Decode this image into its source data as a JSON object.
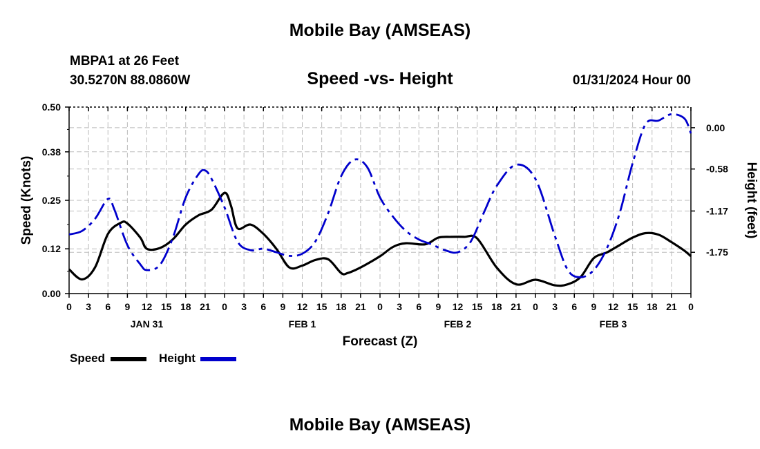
{
  "header": {
    "title": "Mobile Bay (AMSEAS)",
    "station": "MBPA1 at 26 Feet",
    "coords": "30.5270N  88.0860W",
    "subtitle": "Speed -vs- Height",
    "run_time": "01/31/2024 Hour 00"
  },
  "footer": {
    "title": "Mobile Bay (AMSEAS)"
  },
  "legend": {
    "speed_label": "Speed",
    "height_label": "Height"
  },
  "colors": {
    "speed": "#000000",
    "height": "#0000cc",
    "grid": "#bbbbbb"
  },
  "chart_data": {
    "type": "line",
    "title": "Speed -vs- Height",
    "xlabel": "Forecast (Z)",
    "ylabel_left": "Speed (Knots)",
    "ylabel_right": "Height (feet)",
    "x_unit": "hours from 01/31/2024 00Z",
    "xlim": [
      0,
      96
    ],
    "ylim_left": [
      0,
      0.5
    ],
    "ylim_right": [
      -2.33,
      0.29
    ],
    "x_ticks": [
      0,
      3,
      6,
      9,
      12,
      15,
      18,
      21,
      24,
      27,
      30,
      33,
      36,
      39,
      42,
      45,
      48,
      51,
      54,
      57,
      60,
      63,
      66,
      69,
      72,
      75,
      78,
      81,
      84,
      87,
      90,
      93,
      96
    ],
    "x_tick_labels": [
      "0",
      "3",
      "6",
      "9",
      "12",
      "15",
      "18",
      "21",
      "0",
      "3",
      "6",
      "9",
      "12",
      "15",
      "18",
      "21",
      "0",
      "3",
      "6",
      "9",
      "12",
      "15",
      "18",
      "21",
      "0",
      "3",
      "6",
      "9",
      "12",
      "15",
      "18",
      "21",
      "0"
    ],
    "day_labels": [
      {
        "x": 12,
        "label": "JAN 31"
      },
      {
        "x": 36,
        "label": "FEB 1"
      },
      {
        "x": 60,
        "label": "FEB 2"
      },
      {
        "x": 84,
        "label": "FEB 3"
      }
    ],
    "left_ticks": [
      0.0,
      0.12,
      0.25,
      0.38,
      0.5
    ],
    "left_tick_labels": [
      "0.00",
      "0.12",
      "0.25",
      "0.38",
      "0.50"
    ],
    "right_ticks": [
      0.0,
      -0.58,
      -1.17,
      -1.75
    ],
    "right_tick_labels": [
      "0.00",
      "-0.58",
      "-1.17",
      "-1.75"
    ],
    "grid": true,
    "series": [
      {
        "name": "Speed",
        "axis": "left",
        "style": "solid",
        "x": [
          0,
          2,
          4,
          6,
          8,
          9,
          11,
          12,
          14,
          16,
          18,
          20,
          22,
          24,
          25,
          26,
          28,
          30,
          32,
          34,
          36,
          38,
          40,
          42,
          43,
          45,
          48,
          50,
          52,
          55,
          57,
          59,
          61,
          63,
          66,
          69,
          72,
          75,
          77,
          79,
          81,
          83,
          85,
          87,
          89,
          91,
          93,
          95,
          96
        ],
        "values": [
          0.065,
          0.038,
          0.07,
          0.16,
          0.19,
          0.188,
          0.15,
          0.12,
          0.122,
          0.145,
          0.185,
          0.21,
          0.225,
          0.27,
          0.235,
          0.175,
          0.185,
          0.16,
          0.12,
          0.07,
          0.075,
          0.09,
          0.092,
          0.055,
          0.055,
          0.07,
          0.1,
          0.125,
          0.135,
          0.132,
          0.15,
          0.152,
          0.152,
          0.148,
          0.07,
          0.025,
          0.037,
          0.022,
          0.025,
          0.045,
          0.095,
          0.11,
          0.13,
          0.15,
          0.162,
          0.158,
          0.138,
          0.115,
          0.1
        ]
      },
      {
        "name": "Height",
        "axis": "right",
        "style": "dashed",
        "x": [
          0,
          2,
          4,
          6,
          7,
          9,
          11,
          12,
          14,
          16,
          18,
          20,
          21,
          22,
          24,
          26,
          28,
          30,
          32,
          34,
          36,
          38,
          40,
          42,
          44,
          46,
          48,
          50,
          52,
          54,
          56,
          58,
          60,
          62,
          64,
          66,
          69,
          72,
          75,
          77,
          79,
          81,
          83,
          85,
          87,
          89,
          91,
          93,
          95,
          96
        ],
        "values": [
          -1.5,
          -1.45,
          -1.28,
          -1.0,
          -1.15,
          -1.65,
          -1.92,
          -2.0,
          -1.93,
          -1.55,
          -0.98,
          -0.65,
          -0.6,
          -0.72,
          -1.12,
          -1.6,
          -1.72,
          -1.7,
          -1.75,
          -1.8,
          -1.77,
          -1.6,
          -1.2,
          -0.68,
          -0.45,
          -0.55,
          -0.98,
          -1.25,
          -1.45,
          -1.57,
          -1.64,
          -1.72,
          -1.75,
          -1.6,
          -1.2,
          -0.82,
          -0.52,
          -0.72,
          -1.52,
          -2.0,
          -2.1,
          -2.0,
          -1.7,
          -1.2,
          -0.5,
          0.05,
          0.1,
          0.19,
          0.13,
          -0.08
        ]
      }
    ]
  }
}
